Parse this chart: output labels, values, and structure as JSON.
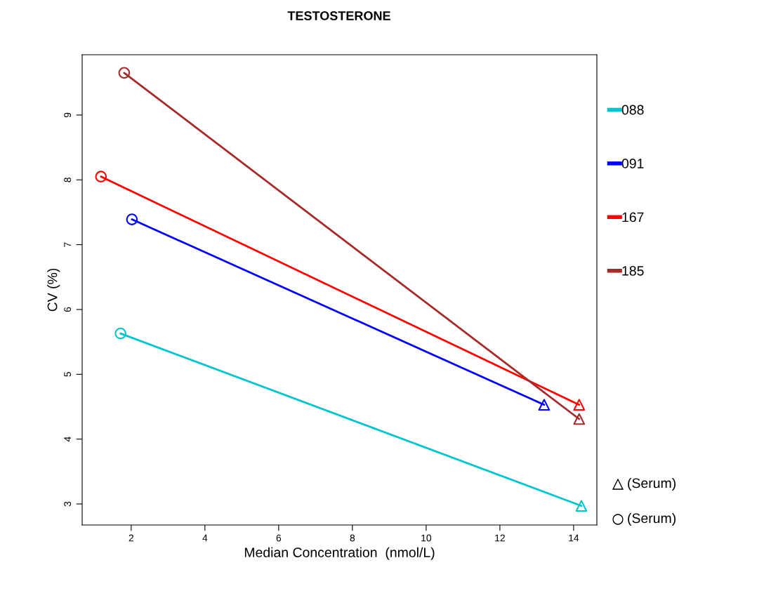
{
  "chart_data": {
    "type": "line",
    "title": "TESTOSTERONE",
    "xlabel": "Median Concentration  (nmol/L)",
    "ylabel": "CV (%)",
    "annotations": [
      "(Serum)",
      "(Serum)"
    ],
    "xlim": [
      0.67,
      14.63
    ],
    "ylim": [
      2.675,
      9.93
    ],
    "xticks": [
      2,
      4,
      6,
      8,
      10,
      12,
      14
    ],
    "yticks": [
      3,
      4,
      5,
      6,
      7,
      8,
      9
    ],
    "grid": false,
    "legend": "right",
    "marker": "none",
    "line_style": "solid",
    "series": [
      {
        "name": "088",
        "color": "#00c5cd",
        "x": [
          1.71,
          14.21
        ],
        "values": [
          5.63,
          2.97
        ]
      },
      {
        "name": "091",
        "color": "#0000ff",
        "x": [
          2.02,
          13.2
        ],
        "values": [
          7.39,
          4.53
        ]
      },
      {
        "name": "167",
        "color": "#ff0000",
        "x": [
          1.18,
          14.15
        ],
        "values": [
          8.05,
          4.53
        ]
      },
      {
        "name": "185",
        "color": "#a52a2a",
        "x": [
          1.81,
          14.15
        ],
        "values": [
          9.65,
          4.31
        ]
      },
      {
        "type": "scatter",
        "marker": "triangle",
        "x": [
          14.21,
          13.2,
          14.15,
          14.15
        ],
        "values": [
          2.97,
          4.53,
          4.53,
          4.31
        ],
        "colors": [
          "#00c5cd",
          "#0000ff",
          "#ff0000",
          "#a52a2a"
        ]
      },
      {
        "type": "scatter",
        "marker": "circle",
        "x": [
          1.71,
          2.02,
          1.18,
          1.81
        ],
        "values": [
          5.63,
          7.39,
          8.05,
          9.65
        ],
        "colors": [
          "#00c5cd",
          "#0000ff",
          "#ff0000",
          "#a52a2a"
        ]
      }
    ]
  }
}
